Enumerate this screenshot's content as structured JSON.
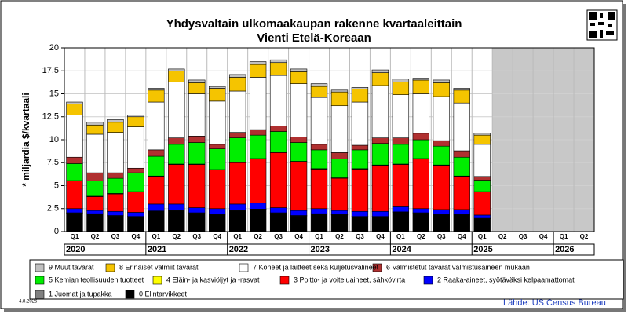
{
  "chart_data": {
    "type": "stacked_bar",
    "title": "Yhdysvaltain ulkomaakaupan rakenne kvartaaleittain",
    "subtitle": "Vienti Etelä-Koreaan",
    "y_label": "* miljardia $/kvartaali",
    "date": "4.8.2026",
    "source": "Lähde: US Census Bureau",
    "categories": [
      "Q1",
      "Q2",
      "Q3",
      "Q4",
      "Q1",
      "Q2",
      "Q3",
      "Q4",
      "Q1",
      "Q2",
      "Q3",
      "Q4",
      "Q1",
      "Q2",
      "Q3",
      "Q4",
      "Q1",
      "Q2",
      "Q3",
      "Q4",
      "Q1",
      "Q2",
      "Q3",
      "Q4",
      "Q1",
      "Q2"
    ],
    "years": [
      "2020",
      "2021",
      "2022",
      "2023",
      "2024",
      "2025",
      "2026"
    ],
    "ylim": [
      0,
      20
    ],
    "yticks": [
      0,
      2.5,
      5,
      7.5,
      10,
      12.5,
      15,
      17.5,
      20
    ],
    "grid": true,
    "series": [
      {
        "name": "0 Elintarvikkeet",
        "color": "#000000",
        "values": [
          2.0,
          1.9,
          1.7,
          1.6,
          2.2,
          2.3,
          2.0,
          1.8,
          2.3,
          2.4,
          2.0,
          1.7,
          1.9,
          1.8,
          1.6,
          1.6,
          2.1,
          2.0,
          1.8,
          1.8,
          1.4,
          null,
          null,
          null,
          null,
          null
        ]
      },
      {
        "name": "1 Juomat ja tupakka",
        "color": "#808080",
        "values": [
          0.05,
          0.05,
          0.05,
          0.05,
          0.05,
          0.05,
          0.05,
          0.05,
          0.05,
          0.05,
          0.05,
          0.05,
          0.05,
          0.05,
          0.05,
          0.05,
          0.05,
          0.05,
          0.05,
          0.05,
          0.05,
          null,
          null,
          null,
          null,
          null
        ]
      },
      {
        "name": "2 Raaka-aineet, syötäväksi kelpaamattomat",
        "color": "#0000ff",
        "values": [
          0.45,
          0.35,
          0.45,
          0.45,
          0.75,
          0.65,
          0.55,
          0.65,
          0.65,
          0.65,
          0.55,
          0.55,
          0.55,
          0.45,
          0.55,
          0.55,
          0.55,
          0.45,
          0.55,
          0.55,
          0.35,
          null,
          null,
          null,
          null,
          null
        ]
      },
      {
        "name": "3 Poltto- ja voiteluaineet, sähkövirta",
        "color": "#ff0000",
        "values": [
          3.0,
          1.5,
          1.9,
          2.2,
          3.0,
          4.3,
          4.7,
          4.2,
          4.5,
          4.8,
          6.0,
          5.3,
          4.3,
          3.5,
          4.6,
          5.0,
          4.6,
          5.4,
          4.8,
          3.6,
          2.5,
          null,
          null,
          null,
          null,
          null
        ]
      },
      {
        "name": "4 Eläin- ja kasviöljyt ja -rasvat",
        "color": "#ffff00",
        "values": [
          0.05,
          0.05,
          0.05,
          0.05,
          0.05,
          0.05,
          0.05,
          0.05,
          0.05,
          0.05,
          0.05,
          0.05,
          0.05,
          0.05,
          0.05,
          0.05,
          0.05,
          0.05,
          0.05,
          0.05,
          0.05,
          null,
          null,
          null,
          null,
          null
        ]
      },
      {
        "name": "5 Kemian teollisuuden tuotteet",
        "color": "#00ee00",
        "values": [
          1.85,
          1.65,
          1.65,
          2.05,
          2.15,
          2.15,
          2.35,
          2.25,
          2.65,
          2.55,
          2.25,
          2.05,
          2.05,
          2.05,
          2.05,
          2.35,
          2.15,
          2.05,
          2.05,
          2.05,
          1.25,
          null,
          null,
          null,
          null,
          null
        ]
      },
      {
        "name": "6 Valmistetut tavarat valmistusaineen mukaan",
        "color": "#b03030",
        "values": [
          0.7,
          0.9,
          0.6,
          0.5,
          0.7,
          0.7,
          0.7,
          0.5,
          0.6,
          0.6,
          0.6,
          0.6,
          0.6,
          0.7,
          0.5,
          0.6,
          0.7,
          0.7,
          0.6,
          0.7,
          0.4,
          null,
          null,
          null,
          null,
          null
        ]
      },
      {
        "name": "7 Koneet ja laitteet sekä kuljetusvälineet",
        "color": "#ffffff",
        "values": [
          4.6,
          4.2,
          4.4,
          4.5,
          5.2,
          6.1,
          4.6,
          4.7,
          4.5,
          5.7,
          5.5,
          5.8,
          5.1,
          5.1,
          4.7,
          5.7,
          4.7,
          4.3,
          4.8,
          5.2,
          3.5,
          null,
          null,
          null,
          null,
          null
        ]
      },
      {
        "name": "8 Erinäiset valmiit tavarat",
        "color": "#f5c400",
        "values": [
          1.2,
          1.0,
          1.1,
          1.1,
          1.3,
          1.2,
          1.2,
          1.4,
          1.5,
          1.4,
          1.4,
          1.3,
          1.2,
          1.5,
          1.4,
          1.4,
          1.4,
          1.5,
          1.5,
          1.4,
          1.0,
          null,
          null,
          null,
          null,
          null
        ]
      },
      {
        "name": "9 Muut tavarat",
        "color": "#c0c0c0",
        "values": [
          0.2,
          0.3,
          0.3,
          0.2,
          0.2,
          0.2,
          0.3,
          0.2,
          0.3,
          0.3,
          0.3,
          0.3,
          0.3,
          0.2,
          0.2,
          0.3,
          0.3,
          0.2,
          0.3,
          0.2,
          0.2,
          null,
          null,
          null,
          null,
          null
        ]
      }
    ]
  }
}
